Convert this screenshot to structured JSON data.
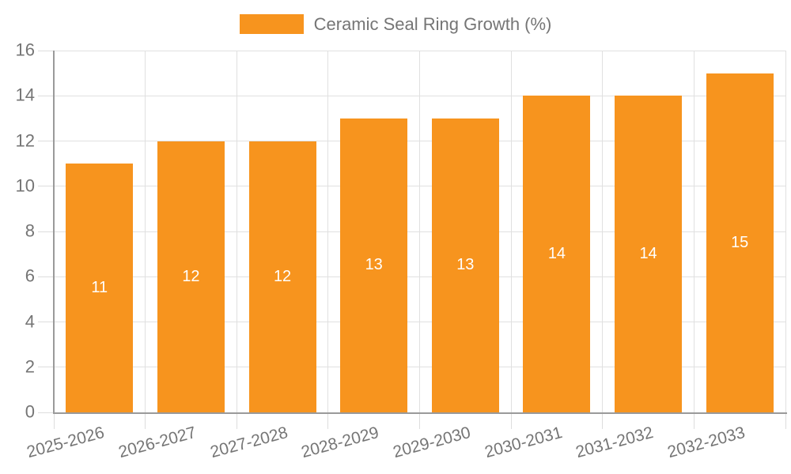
{
  "legend": {
    "label": "Ceramic Seal Ring Growth (%)"
  },
  "chart_data": {
    "type": "bar",
    "title": "Ceramic Seal Ring Growth (%)",
    "series_name": "Ceramic Seal Ring Growth (%)",
    "categories": [
      "2025-2026",
      "2026-2027",
      "2027-2028",
      "2028-2029",
      "2029-2030",
      "2030-2031",
      "2031-2032",
      "2032-2033"
    ],
    "values": [
      11,
      12,
      12,
      13,
      13,
      14,
      14,
      15
    ],
    "data_labels": [
      "11",
      "12",
      "12",
      "13",
      "13",
      "14",
      "14",
      "15"
    ],
    "xlabel": "",
    "ylabel": "",
    "ylim": [
      0,
      16
    ],
    "ytick_step": 2,
    "yticks": [
      0,
      2,
      4,
      6,
      8,
      10,
      12,
      14,
      16
    ],
    "grid": true,
    "legend_position": "top",
    "bar_labels_inside": true,
    "x_label_rotation_deg": -15
  },
  "colors": {
    "bar": "#f7941e",
    "grid": "#e0e0e0",
    "tick": "#dddddd",
    "axis": "#9a9a9a",
    "text": "#757575",
    "bar_label": "#ffffff"
  }
}
